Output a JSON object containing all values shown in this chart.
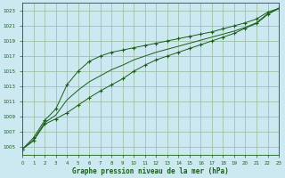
{
  "title": "Graphe pression niveau de la mer (hPa)",
  "bg_color": "#cce8f0",
  "grid_color": "#99bb99",
  "line_color": "#1a5e1a",
  "xlim": [
    0,
    23
  ],
  "ylim": [
    1004,
    1024
  ],
  "xticks": [
    0,
    1,
    2,
    3,
    4,
    5,
    6,
    7,
    8,
    9,
    10,
    11,
    12,
    13,
    14,
    15,
    16,
    17,
    18,
    19,
    20,
    21,
    22,
    23
  ],
  "yticks": [
    1005,
    1007,
    1009,
    1011,
    1013,
    1015,
    1017,
    1019,
    1021,
    1023
  ],
  "series_bottom_x": [
    0,
    1,
    2,
    3,
    4,
    5,
    6,
    7,
    8,
    9,
    10,
    11,
    12,
    13,
    14,
    15,
    16,
    17,
    18,
    19,
    20,
    21,
    22,
    23
  ],
  "series_bottom_y": [
    1004.7,
    1005.8,
    1008.0,
    1008.7,
    1009.5,
    1010.5,
    1011.5,
    1012.4,
    1013.2,
    1014.0,
    1015.0,
    1015.8,
    1016.5,
    1017.0,
    1017.5,
    1018.0,
    1018.5,
    1019.0,
    1019.5,
    1020.0,
    1020.7,
    1021.3,
    1022.5,
    1023.3
  ],
  "series_top_x": [
    0,
    1,
    2,
    3,
    4,
    5,
    6,
    7,
    8,
    9,
    10,
    11,
    12,
    13,
    14,
    15,
    16,
    17,
    18,
    19,
    20,
    21,
    22,
    23
  ],
  "series_top_y": [
    1004.7,
    1006.2,
    1008.5,
    1010.0,
    1013.2,
    1015.0,
    1016.3,
    1017.0,
    1017.5,
    1017.8,
    1018.1,
    1018.4,
    1018.7,
    1019.0,
    1019.3,
    1019.6,
    1019.9,
    1020.2,
    1020.6,
    1021.0,
    1021.4,
    1021.9,
    1022.8,
    1023.3
  ],
  "series_mid_x": [
    0,
    1,
    2,
    3,
    4,
    5,
    6,
    7,
    8,
    9,
    10,
    11,
    12,
    13,
    14,
    15,
    16,
    17,
    18,
    19,
    20,
    21,
    22,
    23
  ],
  "series_mid_y": [
    1004.7,
    1005.9,
    1008.2,
    1009.2,
    1011.2,
    1012.5,
    1013.6,
    1014.4,
    1015.2,
    1015.8,
    1016.5,
    1017.0,
    1017.5,
    1017.9,
    1018.3,
    1018.7,
    1019.1,
    1019.5,
    1019.9,
    1020.3,
    1020.8,
    1021.4,
    1022.6,
    1023.3
  ]
}
